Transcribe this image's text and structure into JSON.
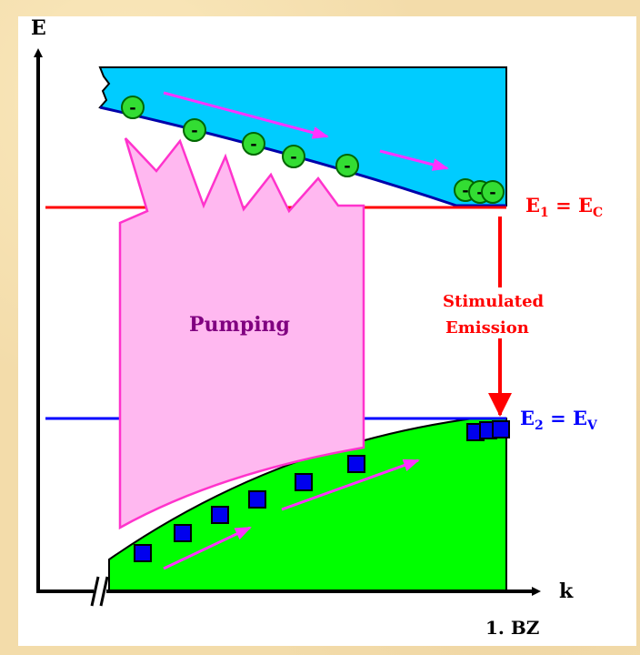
{
  "axes": {
    "y_label": "E",
    "x_label": "k",
    "zone_label": "1. BZ"
  },
  "levels": {
    "upper": {
      "main": "E",
      "sub": "1",
      "eq": " = E",
      "sub2": "C",
      "color": "#ff0000"
    },
    "lower": {
      "main": "E",
      "sub": "2",
      "eq": " = E",
      "sub2": "V",
      "color": "#0000ff"
    }
  },
  "transition": {
    "line1": "Stimulated",
    "line2": "Emission",
    "color": "#ff0000"
  },
  "pump": {
    "label": "Pumping",
    "fill": "#ffb8f0",
    "stroke": "#ff33cc",
    "label_color": "#800080"
  },
  "bands": {
    "conduction_fill": "#00ccff",
    "valence_fill": "#00ff00"
  },
  "particles": {
    "electron_symbol": "-",
    "electron_fill": "#33dd33",
    "hole_fill": "#0000ee",
    "arrow_color": "#ff33ff"
  }
}
